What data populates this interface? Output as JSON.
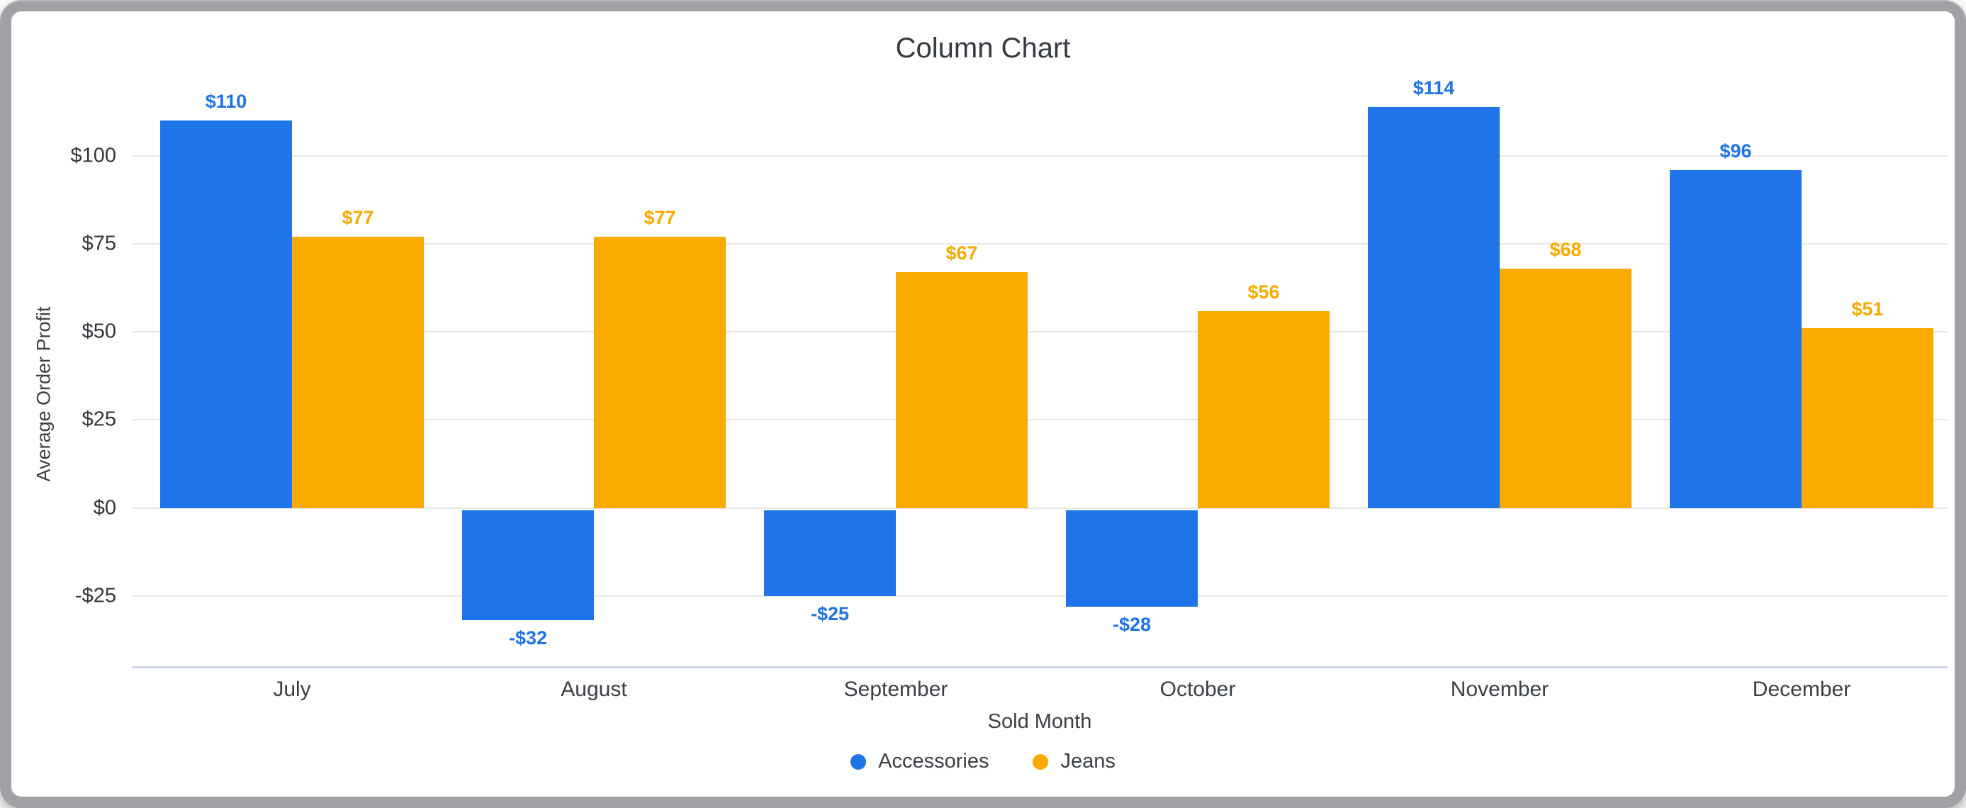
{
  "window": {
    "frame_color": "#9fa1a5"
  },
  "chart_data": {
    "type": "bar",
    "title": "Column Chart",
    "xlabel": "Sold Month",
    "ylabel": "Average Order Profit",
    "categories": [
      "July",
      "August",
      "September",
      "October",
      "November",
      "December"
    ],
    "series": [
      {
        "name": "Accessories",
        "color": "#1E74E8",
        "values": [
          110,
          -32,
          -25,
          -28,
          114,
          96
        ],
        "labels": [
          "$110",
          "-$32",
          "-$25",
          "-$28",
          "$114",
          "$96"
        ]
      },
      {
        "name": "Jeans",
        "color": "#F9AB00",
        "values": [
          77,
          77,
          67,
          56,
          68,
          51
        ],
        "labels": [
          "$77",
          "$77",
          "$67",
          "$56",
          "$68",
          "$51"
        ]
      }
    ],
    "y_ticks": [
      {
        "value": 100,
        "label": "$100"
      },
      {
        "value": 75,
        "label": "$75"
      },
      {
        "value": 50,
        "label": "$50"
      },
      {
        "value": 25,
        "label": "$25"
      },
      {
        "value": 0,
        "label": "$0"
      },
      {
        "value": -25,
        "label": "-$25"
      }
    ],
    "ylim": [
      -45,
      125
    ],
    "grid": true,
    "legend_position": "bottom"
  }
}
